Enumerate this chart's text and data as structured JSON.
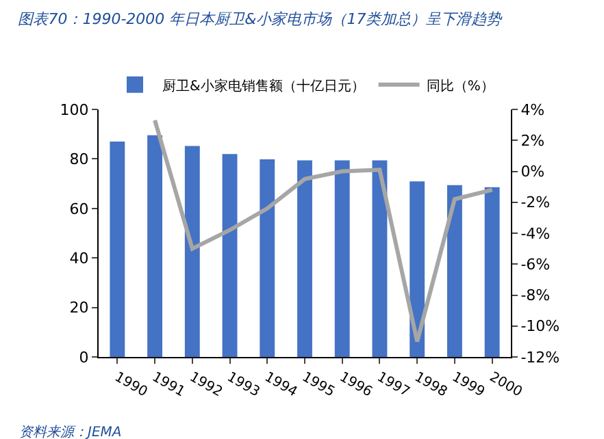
{
  "chart_data": {
    "type": "bar",
    "title": "图表70：1990-2000 年日本厨卫&小家电市场（17类加总）呈下滑趋势",
    "annotations": [
      "资料来源：JEMA"
    ],
    "categories": [
      "1990",
      "1991",
      "1992",
      "1993",
      "1994",
      "1995",
      "1996",
      "1997",
      "1998",
      "1999",
      "2000"
    ],
    "series": [
      {
        "name": "厨卫&小家电销售额（十亿日元）",
        "color": "#4472c4",
        "values": [
          87.0,
          89.6,
          85.2,
          82.0,
          79.8,
          79.4,
          79.4,
          79.4,
          70.9,
          69.4,
          68.6
        ]
      },
      {
        "name": "同比（%）",
        "type": "line",
        "axis": "y2",
        "color": "#a6a6a6",
        "values": [
          null,
          3.3,
          -5.0,
          -3.8,
          -2.4,
          -0.5,
          0.0,
          0.1,
          -11.0,
          -1.8,
          -1.2
        ]
      }
    ],
    "ylim": [
      0,
      100
    ],
    "yticks": [
      0,
      20,
      40,
      60,
      80,
      100
    ],
    "y2lim": [
      -12,
      4
    ],
    "y2ticks": [
      {
        "value": -12,
        "label": "-12%"
      },
      {
        "value": -10,
        "label": "-10%"
      },
      {
        "value": -8,
        "label": "-8%"
      },
      {
        "value": -6,
        "label": "-6%"
      },
      {
        "value": -4,
        "label": "-4%"
      },
      {
        "value": -2,
        "label": "-2%"
      },
      {
        "value": 0,
        "label": "0%"
      },
      {
        "value": 2,
        "label": "2%"
      },
      {
        "value": 4,
        "label": "4%"
      }
    ],
    "grid": false,
    "legend": "top",
    "marker": "none",
    "line_style": "solid"
  }
}
